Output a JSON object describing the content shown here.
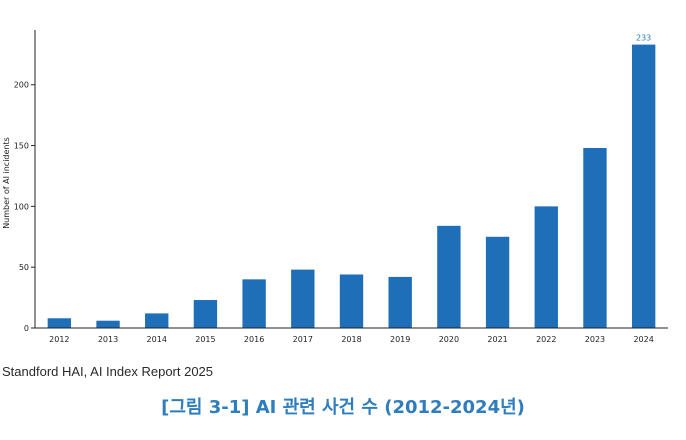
{
  "chart_data": {
    "type": "bar",
    "categories": [
      "2012",
      "2013",
      "2014",
      "2015",
      "2016",
      "2017",
      "2018",
      "2019",
      "2020",
      "2021",
      "2022",
      "2023",
      "2024"
    ],
    "values": [
      8,
      6,
      12,
      23,
      40,
      48,
      44,
      42,
      84,
      75,
      100,
      148,
      233
    ],
    "data_labels": [
      {
        "category": "2024",
        "text": "233"
      }
    ],
    "ylabel": "Number of AI incidents",
    "xlabel": "",
    "ylim": [
      0,
      245
    ],
    "yticks": [
      0,
      50,
      100,
      150,
      200
    ],
    "bar_color": "#1f6fb8",
    "grid": false,
    "legend": "none"
  },
  "source": "Standford HAI, AI Index Report 2025",
  "caption": "[그림 3-1] AI 관련 사건 수 (2012-2024년)",
  "colors": {
    "bar": "#1f6fb8",
    "caption": "#2e7dbd",
    "data_label": "#2a7cc0"
  }
}
